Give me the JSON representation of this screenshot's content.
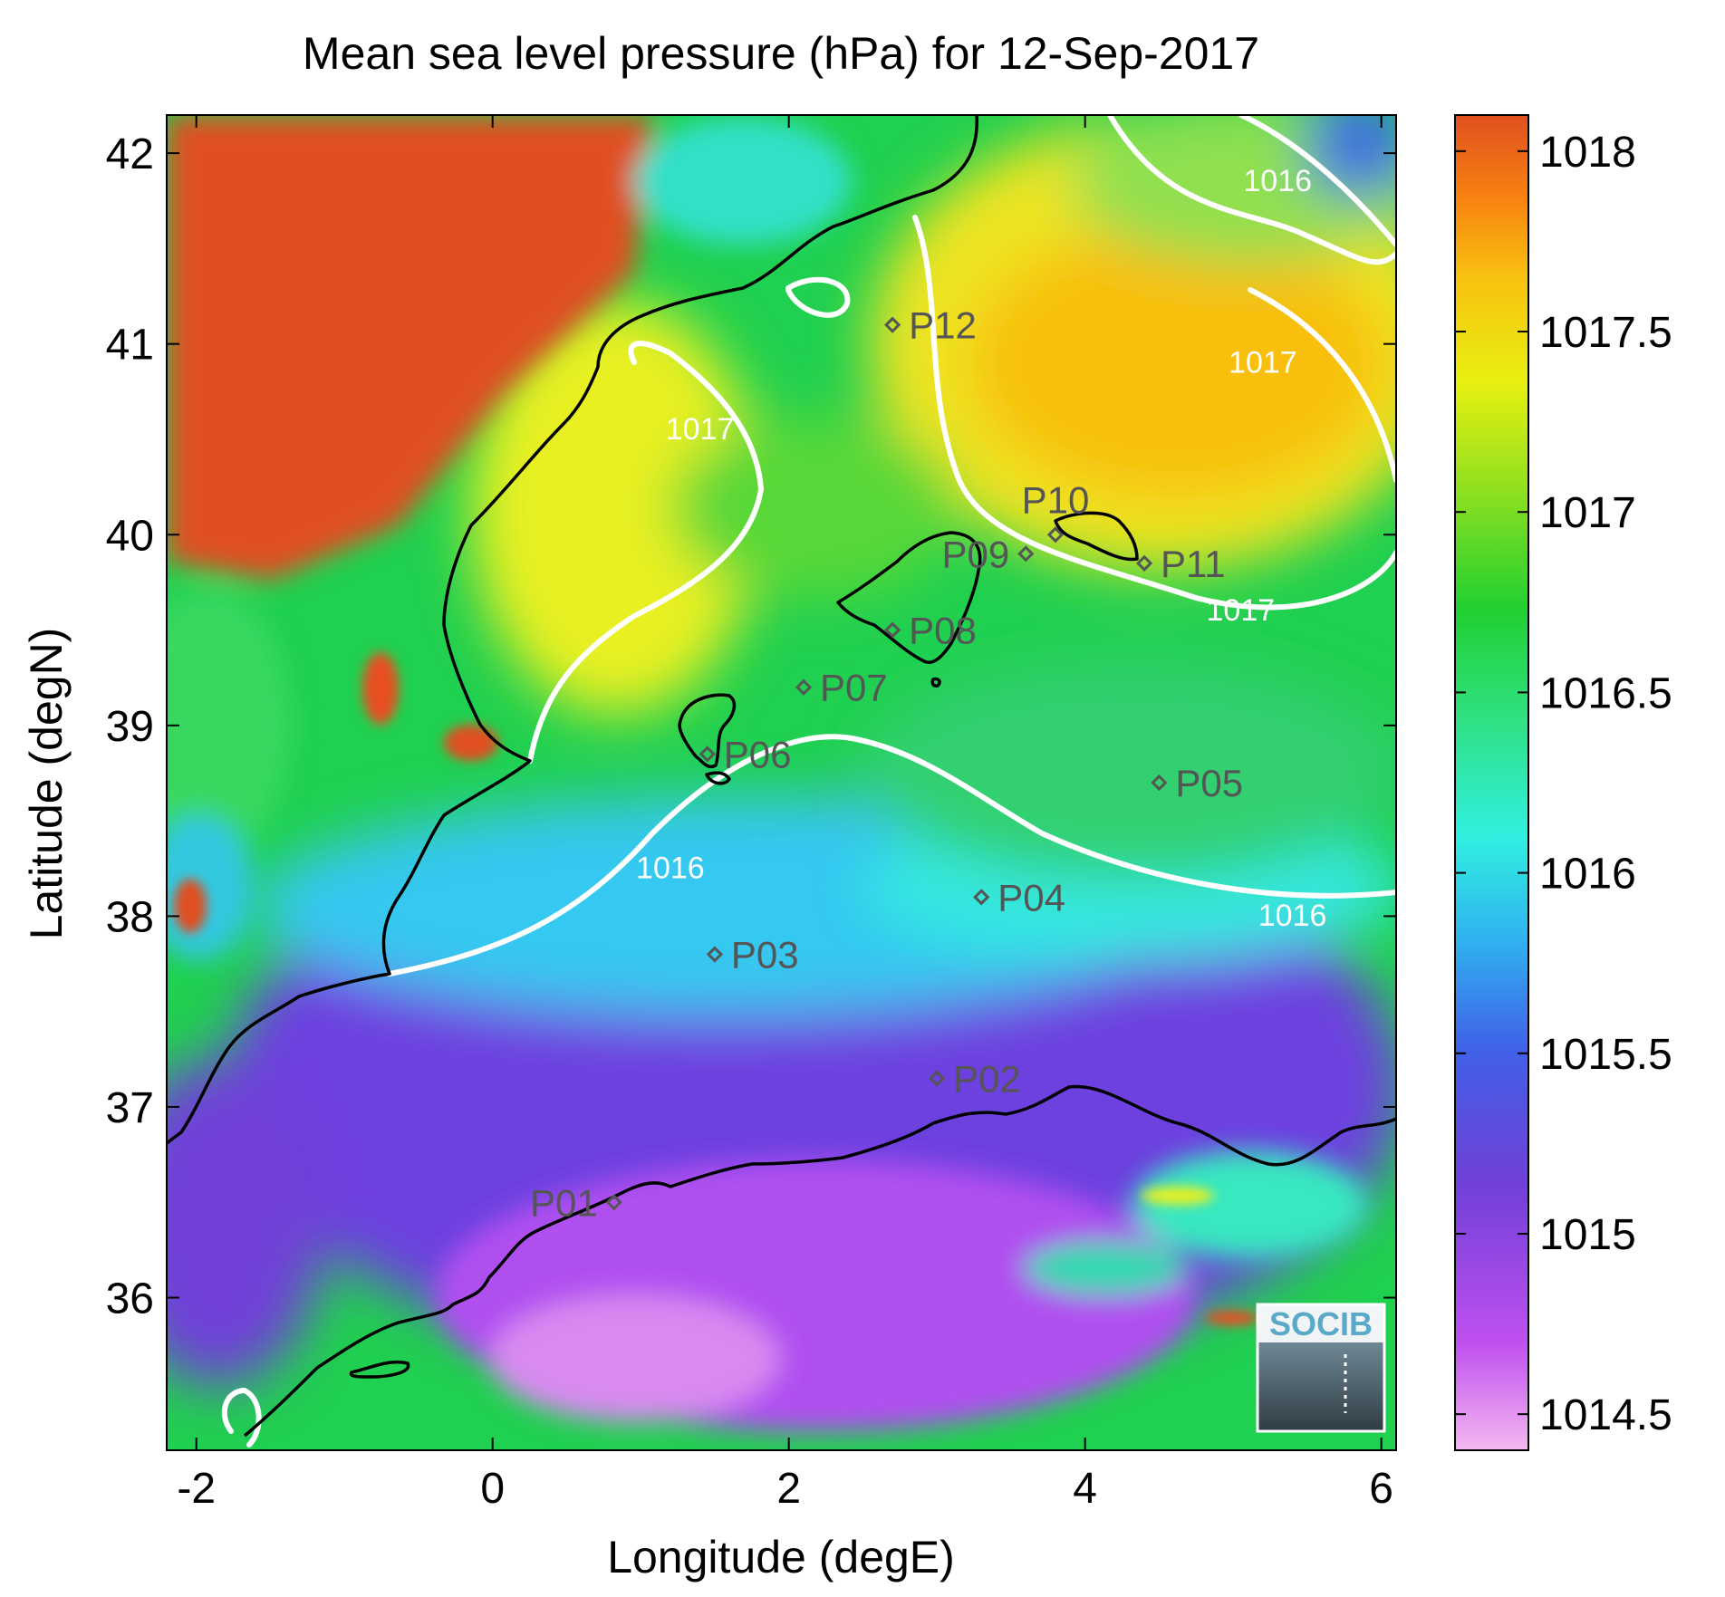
{
  "chart_data": {
    "type": "heatmap",
    "title": "Mean sea level pressure (hPa) for 12-Sep-2017",
    "xlabel": "Longitude (degE)",
    "ylabel": "Latitude (degN)",
    "xlim": [
      -2.2,
      6.1
    ],
    "ylim": [
      35.2,
      42.2
    ],
    "x_ticks": [
      -2,
      0,
      2,
      4,
      6
    ],
    "x_tick_labels": [
      "-2",
      "0",
      "2",
      "4",
      "6"
    ],
    "y_ticks": [
      36,
      37,
      38,
      39,
      40,
      41,
      42
    ],
    "y_tick_labels": [
      "36",
      "37",
      "38",
      "39",
      "40",
      "41",
      "42"
    ],
    "colorbar": {
      "range": [
        1014.4,
        1018.1
      ],
      "ticks": [
        1014.5,
        1015,
        1015.5,
        1016,
        1016.5,
        1017,
        1017.5,
        1018
      ],
      "tick_labels": [
        "1014.5",
        "1015",
        "1015.5",
        "1016",
        "1016.5",
        "1017",
        "1017.5",
        "1018"
      ],
      "colors": [
        "#f4b8f0",
        "#c050f0",
        "#7040d8",
        "#4060e8",
        "#30b0f0",
        "#30f0e0",
        "#30e080",
        "#20d030",
        "#90e020",
        "#e8f010",
        "#f8c010",
        "#f88010",
        "#e05020"
      ]
    },
    "contour_labels": [
      {
        "text": "1016",
        "lon": 5.3,
        "lat": 41.8
      },
      {
        "text": "1017",
        "lon": 5.2,
        "lat": 40.85
      },
      {
        "text": "1017",
        "lon": 1.4,
        "lat": 40.5
      },
      {
        "text": "1017",
        "lon": 5.05,
        "lat": 39.55
      },
      {
        "text": "1016",
        "lon": 1.2,
        "lat": 38.2
      },
      {
        "text": "1016",
        "lon": 5.4,
        "lat": 37.95
      }
    ],
    "stations": [
      {
        "name": "P01",
        "lon": 0.82,
        "lat": 36.5,
        "label_side": "left"
      },
      {
        "name": "P02",
        "lon": 3.0,
        "lat": 37.15,
        "label_side": "right"
      },
      {
        "name": "P03",
        "lon": 1.5,
        "lat": 37.8,
        "label_side": "right"
      },
      {
        "name": "P04",
        "lon": 3.3,
        "lat": 38.1,
        "label_side": "right"
      },
      {
        "name": "P05",
        "lon": 4.5,
        "lat": 38.7,
        "label_side": "right"
      },
      {
        "name": "P06",
        "lon": 1.45,
        "lat": 38.85,
        "label_side": "right"
      },
      {
        "name": "P07",
        "lon": 2.1,
        "lat": 39.2,
        "label_side": "right"
      },
      {
        "name": "P08",
        "lon": 2.7,
        "lat": 39.5,
        "label_side": "right"
      },
      {
        "name": "P09",
        "lon": 3.6,
        "lat": 39.9,
        "label_side": "left"
      },
      {
        "name": "P10",
        "lon": 3.8,
        "lat": 40.0,
        "label_side": "above"
      },
      {
        "name": "P11",
        "lon": 4.4,
        "lat": 39.85,
        "label_side": "right"
      },
      {
        "name": "P12",
        "lon": 2.7,
        "lat": 41.1,
        "label_side": "right"
      }
    ],
    "grid": false,
    "legend": "colorbar-right"
  },
  "logo": {
    "text": "SOCIB"
  }
}
